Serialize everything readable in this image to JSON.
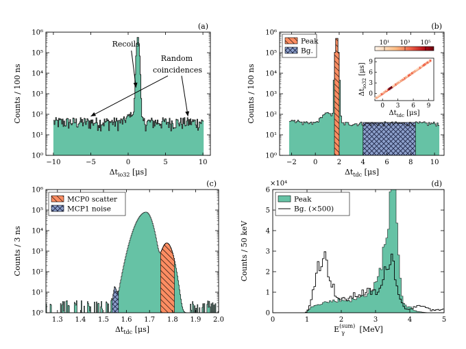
{
  "colors": {
    "fill": "#66c2a5",
    "hist_line": "#1a1a1a",
    "peak": "#fc8d62",
    "bg": "#8da0cb",
    "heat_low": "#fde0c5",
    "heat_mid": "#f0654a",
    "heat_high": "#6b0010"
  },
  "chart_data": [
    {
      "id": "a",
      "panel_label": "(a)",
      "type": "histogram",
      "yscale": "log",
      "xlabel_main": "Δt",
      "xlabel_sub": "io32",
      "xlabel_unit": "[μs]",
      "ylabel": "Counts / 100 ns",
      "xlim": [
        -11,
        11
      ],
      "ylim": [
        1,
        1000000
      ],
      "xticks": [
        -10,
        -5,
        0,
        5,
        10
      ],
      "yticks": [
        1,
        10,
        100,
        1000,
        10000,
        100000,
        1000000
      ],
      "ytick_labels": [
        "10⁰",
        "10¹",
        "10²",
        "10³",
        "10⁴",
        "10⁵",
        "10⁶"
      ],
      "baseline_counts": 30,
      "noise_range": [
        15,
        70
      ],
      "peaks": [
        {
          "x": 1.3,
          "height": 600000,
          "width": 0.12,
          "pedestal": 3000
        },
        {
          "x": 0.5,
          "height": 60,
          "width": 0.5,
          "pedestal": 0
        }
      ],
      "data_range": [
        -10,
        10
      ],
      "annotations": [
        {
          "text": "Recoils",
          "x": -0.3,
          "y": 200000,
          "target_x": 1.05,
          "target_y": 2000
        },
        {
          "text": "Random",
          "x": 6.5,
          "y": 40000
        },
        {
          "text": "coincidences",
          "x": 6.6,
          "y": 11000,
          "targets": [
            [
              -5,
              80
            ],
            [
              8,
              80
            ]
          ]
        }
      ]
    },
    {
      "id": "b",
      "panel_label": "(b)",
      "type": "histogram",
      "yscale": "log",
      "xlabel_main": "Δt",
      "xlabel_sub": "tdc",
      "xlabel_unit": "[μs]",
      "ylabel": "Counts / 100 ns",
      "xlim": [
        -3,
        10.8
      ],
      "ylim": [
        1,
        1000000
      ],
      "xticks": [
        -2,
        0,
        2,
        4,
        6,
        8,
        10
      ],
      "yticks": [
        1,
        10,
        100,
        1000,
        10000,
        100000,
        1000000
      ],
      "ytick_labels": [
        "10⁰",
        "10¹",
        "10²",
        "10³",
        "10⁴",
        "10⁵",
        "10⁶"
      ],
      "baseline_counts": 35,
      "data_range": [
        -2.2,
        10.3
      ],
      "peaks": [
        {
          "x": 1.8,
          "height": 600000,
          "width": 0.08,
          "pedestal": 2000
        },
        {
          "x": 1.0,
          "height": 80,
          "width": 0.4,
          "pedestal": 0
        }
      ],
      "peak_region": [
        1.6,
        2.05
      ],
      "bg_region": [
        4.0,
        8.4
      ],
      "bg_level": 40,
      "legend": [
        {
          "label": "Peak",
          "style": "peak"
        },
        {
          "label": "Bg.",
          "style": "bg"
        }
      ],
      "inset": {
        "type": "heatmap",
        "xlabel_main": "Δt",
        "xlabel_sub": "tdc",
        "xlabel_unit": "[μs]",
        "ylabel_main": "Δt",
        "ylabel_sub": "io32",
        "ylabel_unit": "[μs]",
        "xlim": [
          -1.5,
          10
        ],
        "ylim": [
          -2,
          10
        ],
        "xticks": [
          0,
          3,
          6,
          9
        ],
        "yticks": [
          0,
          3,
          6,
          9
        ],
        "colorbar_ticks": [
          "10¹",
          "10³",
          "10⁵"
        ],
        "hotspot": [
          1.6,
          1.6
        ]
      }
    },
    {
      "id": "c",
      "panel_label": "(c)",
      "type": "histogram",
      "yscale": "log",
      "xlabel_main": "Δt",
      "xlabel_sub": "tdc",
      "xlabel_unit": "[μs]",
      "ylabel": "Counts / 3 ns",
      "xlim": [
        1.25,
        2.0
      ],
      "ylim": [
        1,
        1000000
      ],
      "xticks": [
        1.3,
        1.4,
        1.5,
        1.6,
        1.7,
        1.8,
        1.9,
        2.0
      ],
      "yticks": [
        1,
        10,
        100,
        1000,
        10000,
        100000,
        1000000
      ],
      "ytick_labels": [
        "10⁰",
        "10¹",
        "10²",
        "10³",
        "10⁴",
        "10⁵",
        "10⁶"
      ],
      "main_peak": {
        "x": 1.685,
        "height": 80000
      },
      "scatter_peak": {
        "x": 1.775,
        "height": 2500
      },
      "noise_peak": {
        "x": 1.55,
        "height": 15
      },
      "scatter_region": [
        1.745,
        1.81
      ],
      "noise_region": [
        1.535,
        1.565
      ],
      "legend": [
        {
          "label": "MCP0 scatter",
          "style": "peak"
        },
        {
          "label": "MCP1 noise",
          "style": "bg"
        }
      ]
    },
    {
      "id": "d",
      "panel_label": "(d)",
      "type": "histogram",
      "yscale": "linear",
      "xlabel_main": "E",
      "xlabel_sub": "γ",
      "xlabel_sup": "(sum)",
      "xlabel_unit": "[MeV]",
      "ylabel": "Counts / 50 keV",
      "multiplier": "×10⁴",
      "xlim": [
        0,
        5
      ],
      "ylim": [
        0,
        6
      ],
      "xticks": [
        0,
        1,
        2,
        3,
        4,
        5
      ],
      "yticks": [
        0,
        1,
        2,
        3,
        4,
        5,
        6
      ],
      "legend": [
        {
          "label": "Peak",
          "style": "fill"
        },
        {
          "label": "Bg. (×500)",
          "style": "line"
        }
      ],
      "peak_series_desc": "filled histogram",
      "bg_series_desc": "outline histogram"
    }
  ]
}
